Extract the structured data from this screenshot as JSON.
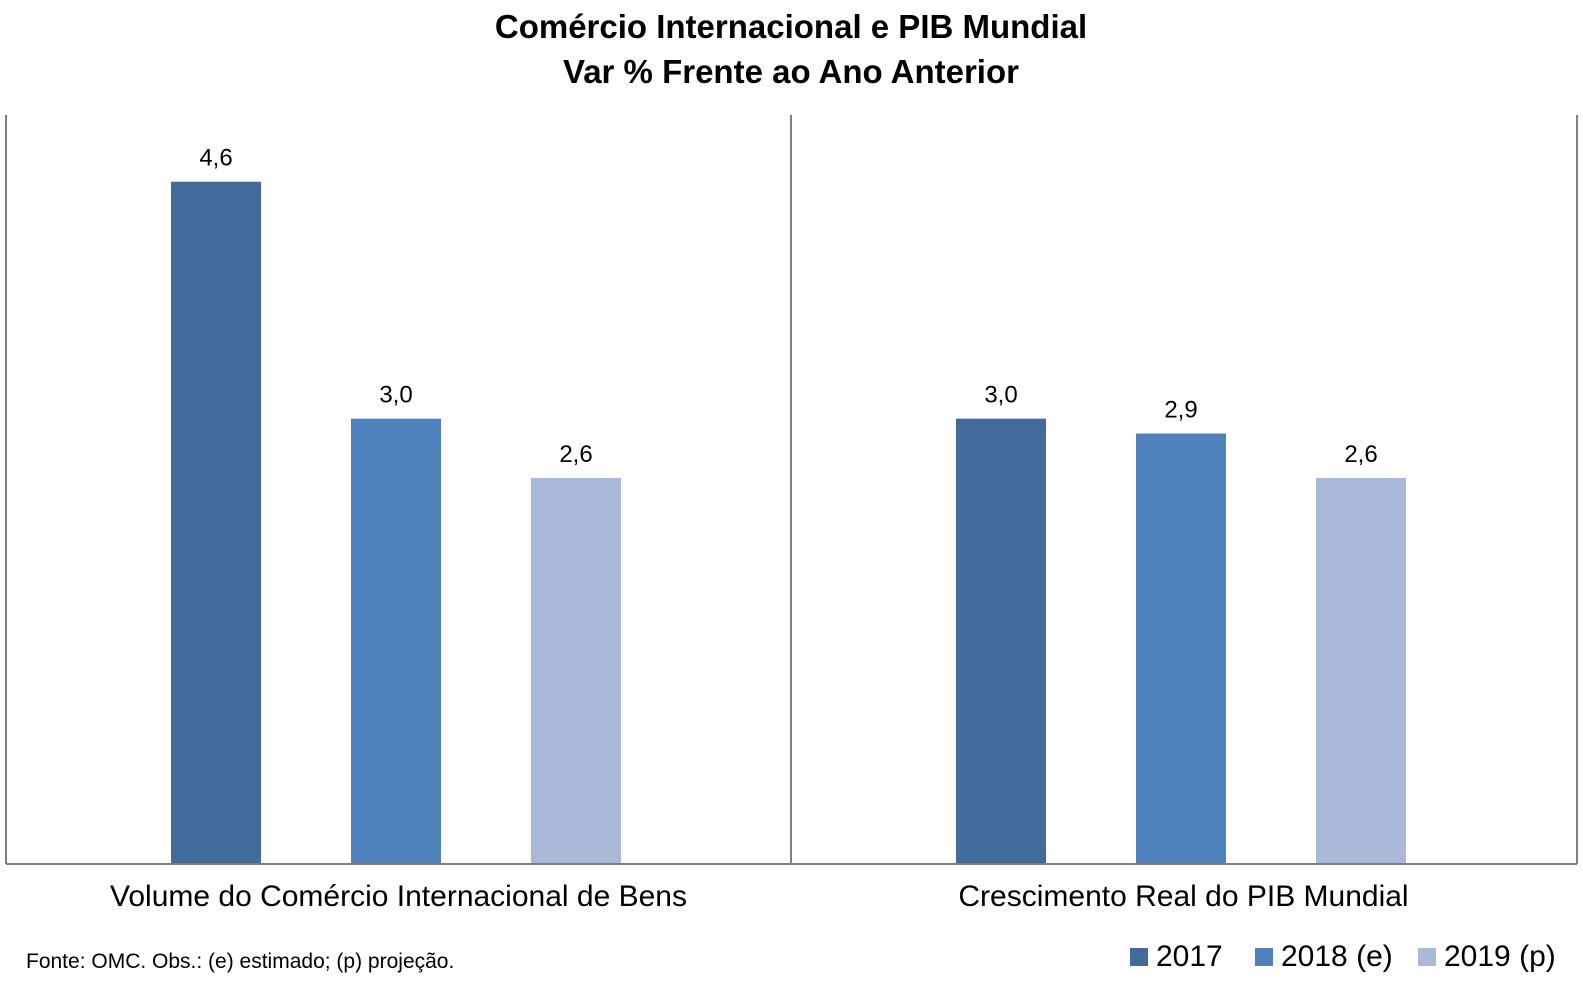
{
  "chart_data": {
    "type": "bar",
    "title": "Comércio Internacional e PIB Mundial",
    "subtitle": "Var % Frente ao Ano Anterior",
    "categories": [
      "Volume do Comércio Internacional de Bens",
      "Crescimento Real do PIB Mundial"
    ],
    "series": [
      {
        "name": "2017",
        "values": [
          4.6,
          3.0
        ],
        "labels": [
          "4,6",
          "3,0"
        ],
        "color": "#426b9b"
      },
      {
        "name": "2018 (e)",
        "values": [
          3.0,
          2.9
        ],
        "labels": [
          "3,0",
          "2,9"
        ],
        "color": "#4f81bd"
      },
      {
        "name": "2019 (p)",
        "values": [
          2.6,
          2.6
        ],
        "labels": [
          "2,6",
          "2,6"
        ],
        "color": "#aab9d7"
      }
    ],
    "ylim": [
      0,
      5
    ],
    "xlabel": "",
    "ylabel": "",
    "grid": false,
    "legend": "bottom-right",
    "source": "Fonte: OMC. Obs.: (e) estimado; (p) projeção."
  }
}
